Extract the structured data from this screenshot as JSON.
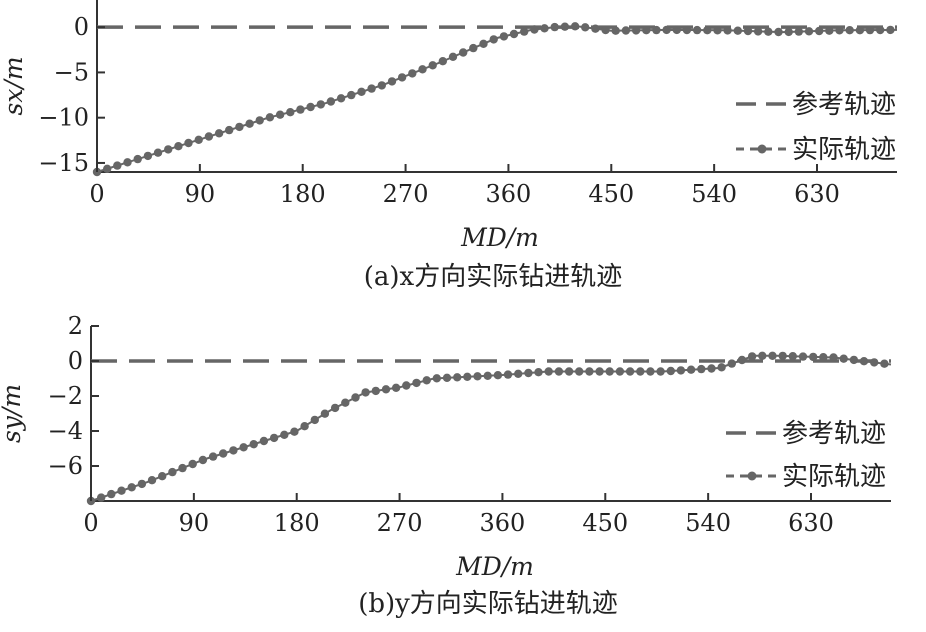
{
  "chart_data": [
    {
      "type": "line",
      "caption": "(a)x方向实际钻进轨迹",
      "xlabel": "MD/m",
      "ylabel": "sx/m",
      "xlim": [
        0,
        700
      ],
      "ylim": [
        -16,
        3
      ],
      "xticks": [
        0,
        90,
        180,
        270,
        360,
        450,
        540,
        630
      ],
      "yticks": [
        0,
        -5,
        -10,
        -15
      ],
      "legend": {
        "position": "right",
        "entries": [
          "参考轨迹",
          "实际轨迹"
        ]
      },
      "series": [
        {
          "name": "参考轨迹",
          "style": "dashed",
          "color": "#666666",
          "x": [
            0,
            700
          ],
          "y": [
            0,
            0
          ]
        },
        {
          "name": "实际轨迹",
          "style": "dotted-markers",
          "color": "#666666",
          "x": [
            0,
            50,
            100,
            150,
            200,
            250,
            300,
            350,
            380,
            400,
            420,
            450,
            500,
            550,
            600,
            650,
            700
          ],
          "y": [
            -16,
            -14,
            -12,
            -10,
            -8.4,
            -6.4,
            -3.9,
            -1.2,
            -0.3,
            0,
            0.1,
            -0.4,
            -0.3,
            -0.35,
            -0.55,
            -0.35,
            -0.3
          ]
        }
      ]
    },
    {
      "type": "line",
      "caption": "(b)y方向实际钻进轨迹",
      "xlabel": "MD/m",
      "ylabel": "sy/m",
      "xlim": [
        0,
        700
      ],
      "ylim": [
        -8,
        2
      ],
      "xticks": [
        0,
        90,
        180,
        270,
        360,
        450,
        540,
        630
      ],
      "yticks": [
        2,
        0,
        -2,
        -4,
        -6
      ],
      "legend": {
        "position": "right",
        "entries": [
          "参考轨迹",
          "实际轨迹"
        ]
      },
      "series": [
        {
          "name": "参考轨迹",
          "style": "dashed",
          "color": "#666666",
          "x": [
            0,
            700
          ],
          "y": [
            0,
            0
          ]
        },
        {
          "name": "实际轨迹",
          "style": "dotted-markers",
          "color": "#666666",
          "x": [
            0,
            50,
            100,
            150,
            180,
            210,
            240,
            270,
            300,
            330,
            360,
            400,
            450,
            500,
            550,
            580,
            600,
            650,
            700
          ],
          "y": [
            -8,
            -6.9,
            -5.6,
            -4.6,
            -4,
            -2.8,
            -1.8,
            -1.5,
            -1.0,
            -0.9,
            -0.8,
            -0.6,
            -0.6,
            -0.6,
            -0.4,
            0.3,
            0.3,
            0.2,
            -0.2
          ]
        }
      ]
    }
  ]
}
